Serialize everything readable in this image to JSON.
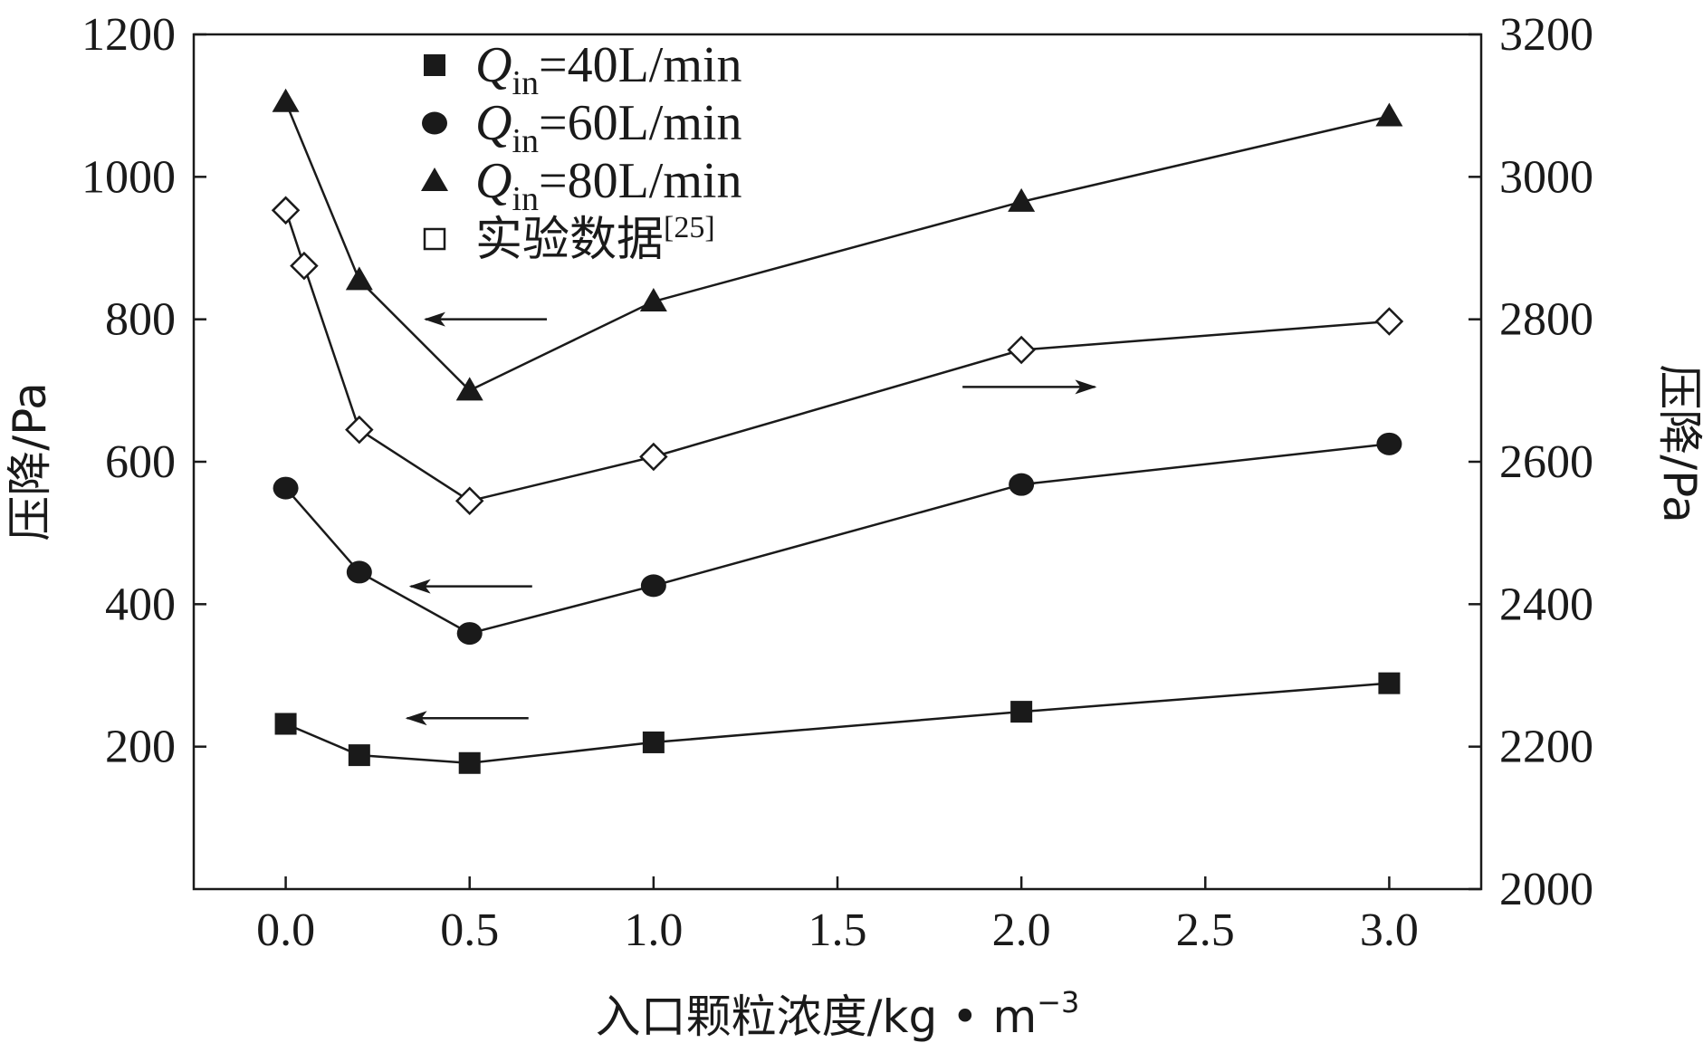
{
  "chart_data": {
    "type": "line",
    "xlabel": "入口颗粒浓度/kg • m",
    "xlabel_sup": "−3",
    "ylabel_left": "压降/Pa",
    "ylabel_right": "压降/Pa",
    "xlim": [
      -0.25,
      3.25
    ],
    "ylim_left": [
      0,
      1200
    ],
    "ylim_right": [
      2000,
      3200
    ],
    "x_ticks": [
      0.0,
      0.5,
      1.0,
      1.5,
      2.0,
      2.5,
      3.0
    ],
    "x_tick_labels": [
      "0.0",
      "0.5",
      "1.0",
      "1.5",
      "2.0",
      "2.5",
      "3.0"
    ],
    "y_left_ticks": [
      200,
      400,
      600,
      800,
      1000,
      1200
    ],
    "y_left_tick_labels": [
      "200",
      "400",
      "600",
      "800",
      "1000",
      "1200"
    ],
    "y_right_ticks": [
      2000,
      2200,
      2400,
      2600,
      2800,
      3000,
      3200
    ],
    "y_right_tick_labels": [
      "2000",
      "2200",
      "2400",
      "2600",
      "2800",
      "3000",
      "3200"
    ],
    "legend_position": "top-left",
    "series": [
      {
        "name": "Qin=40L/min",
        "legend_main": "Q",
        "legend_sub": "in",
        "legend_rest": "=40L/min",
        "marker": "square-filled",
        "axis": "left",
        "x": [
          0.0,
          0.2,
          0.5,
          1.0,
          2.0,
          3.0
        ],
        "y": [
          232,
          188,
          177,
          206,
          249,
          289
        ]
      },
      {
        "name": "Qin=60L/min",
        "legend_main": "Q",
        "legend_sub": "in",
        "legend_rest": "=60L/min",
        "marker": "circle-filled",
        "axis": "left",
        "x": [
          0.0,
          0.2,
          0.5,
          1.0,
          2.0,
          3.0
        ],
        "y": [
          563,
          445,
          359,
          426,
          568,
          625
        ]
      },
      {
        "name": "Qin=80L/min",
        "legend_main": "Q",
        "legend_sub": "in",
        "legend_rest": "=80L/min",
        "marker": "triangle-filled",
        "axis": "left",
        "x": [
          0.0,
          0.2,
          0.5,
          1.0,
          2.0,
          3.0
        ],
        "y": [
          1105,
          855,
          700,
          825,
          965,
          1085
        ]
      },
      {
        "name": "实验数据[25]",
        "legend_main": "实验数据",
        "legend_sup": "[25]",
        "marker": "diamond-open",
        "axis": "right",
        "x": [
          0.0,
          0.05,
          0.2,
          0.5,
          1.0,
          2.0,
          3.0
        ],
        "y": [
          2953,
          2875,
          2645,
          2545,
          2607,
          2757,
          2797
        ]
      }
    ],
    "annotations": [
      {
        "type": "arrow",
        "direction": "left",
        "target_axis": "left",
        "near_series": "Qin=80L/min",
        "x_from": 0.71,
        "x_to": 0.38,
        "y": 800
      },
      {
        "type": "arrow",
        "direction": "right",
        "target_axis": "right",
        "near_series": "实验数据[25]",
        "x_from": 1.84,
        "x_to": 2.2,
        "y": 2705
      },
      {
        "type": "arrow",
        "direction": "left",
        "target_axis": "left",
        "near_series": "Qin=60L/min",
        "x_from": 0.67,
        "x_to": 0.34,
        "y": 425
      },
      {
        "type": "arrow",
        "direction": "left",
        "target_axis": "left",
        "near_series": "Qin=40L/min",
        "x_from": 0.66,
        "x_to": 0.33,
        "y": 240
      }
    ],
    "colors": {
      "line": "#1a1a1a",
      "marker_fill": "#1a1a1a",
      "open_marker_fill": "#ffffff"
    }
  }
}
